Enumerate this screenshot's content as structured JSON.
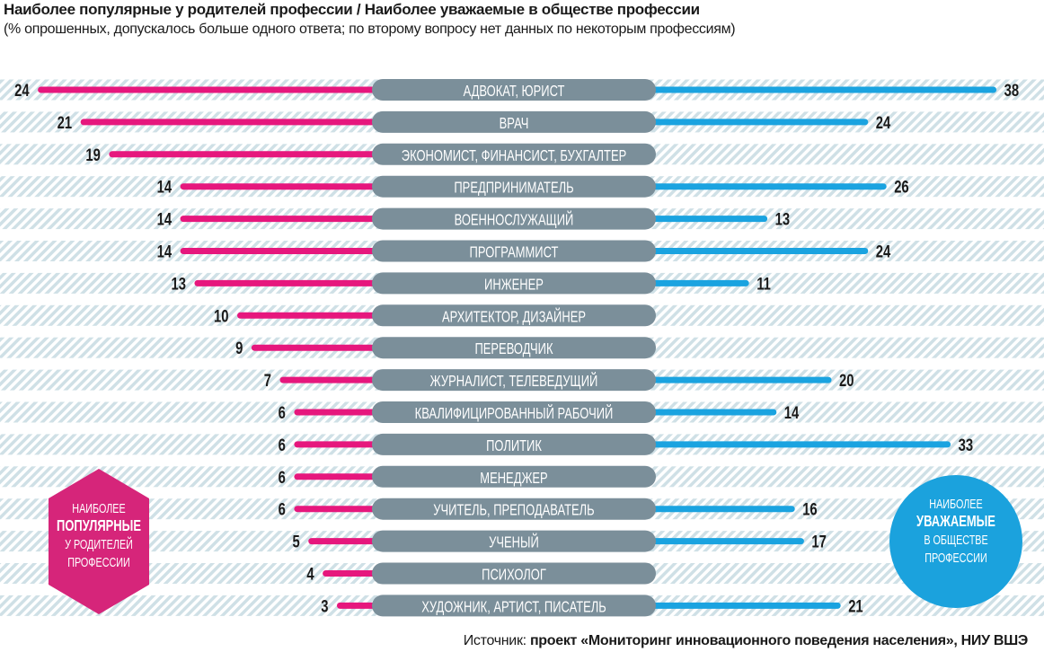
{
  "header": {
    "title": "Наиболее популярные у родителей профессии / Наиболее уважаемые в обществе профессии",
    "subtitle": "(% опрошенных, допускалось больше одного ответа; по второму вопросу нет данных по некоторым профессиям)"
  },
  "chart_data": {
    "type": "bar",
    "title": "Наиболее популярные у родителей профессии / Наиболее уважаемые в обществе профессии",
    "categories": [
      "АДВОКАТ, ЮРИСТ",
      "ВРАЧ",
      "ЭКОНОМИСТ, ФИНАНСИСТ, БУХГАЛТЕР",
      "ПРЕДПРИНИМАТЕЛЬ",
      "ВОЕННОСЛУЖАЩИЙ",
      "ПРОГРАММИСТ",
      "ИНЖЕНЕР",
      "АРХИТЕКТОР, ДИЗАЙНЕР",
      "ПЕРЕВОДЧИК",
      "ЖУРНАЛИСТ, ТЕЛЕВЕДУЩИЙ",
      "КВАЛИФИЦИРОВАННЫЙ РАБОЧИЙ",
      "ПОЛИТИК",
      "МЕНЕДЖЕР",
      "УЧИТЕЛЬ, ПРЕПОДАВАТЕЛЬ",
      "УЧЕНЫЙ",
      "ПСИХОЛОГ",
      "ХУДОЖНИК, АРТИСТ, ПИСАТЕЛЬ"
    ],
    "series": [
      {
        "name": "Наиболее популярные у родителей профессии",
        "color": "#e6177d",
        "values": [
          24,
          21,
          19,
          14,
          14,
          14,
          13,
          10,
          9,
          7,
          6,
          6,
          6,
          6,
          5,
          4,
          3
        ]
      },
      {
        "name": "Наиболее уважаемые в обществе профессии",
        "color": "#1aa3e0",
        "values": [
          38,
          24,
          null,
          26,
          13,
          24,
          11,
          null,
          null,
          20,
          14,
          33,
          null,
          16,
          17,
          null,
          21
        ]
      }
    ],
    "xlim": [
      0,
      40
    ]
  },
  "legend": {
    "left": {
      "line1": "НАИБОЛЕЕ",
      "line2": "ПОПУЛЯРНЫЕ",
      "line3": "У РОДИТЕЛЕЙ",
      "line4": "ПРОФЕССИИ",
      "color": "#d6257a"
    },
    "right": {
      "line1": "НАИБОЛЕЕ",
      "line2": "УВАЖАЕМЫЕ",
      "line3": "В ОБЩЕСТВЕ",
      "line4": "ПРОФЕССИИ",
      "color": "#1ba2dd"
    }
  },
  "source": {
    "prefix": "Источник: ",
    "text": "проект «Мониторинг инновационного поведения населения», НИУ ВШЭ"
  },
  "colors": {
    "center_pill": "#7b8f9a",
    "stripe": "#cfe0e6"
  }
}
